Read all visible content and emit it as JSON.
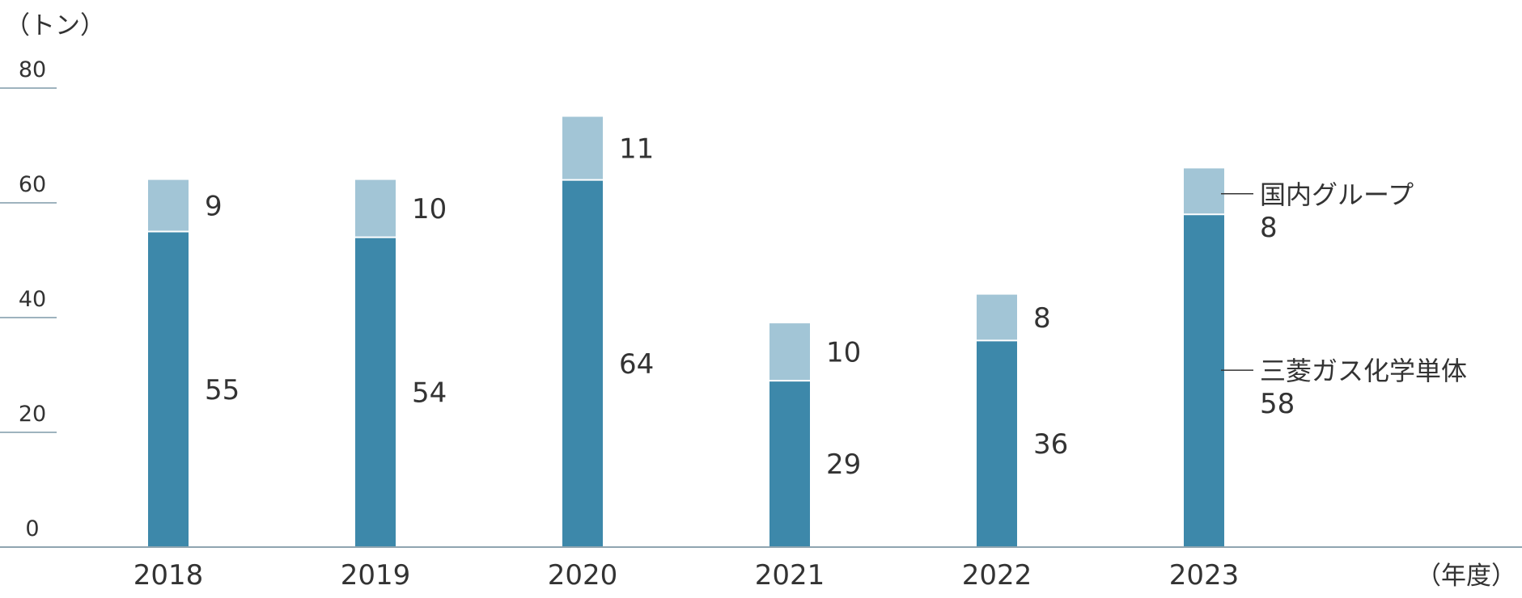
{
  "chart_data": {
    "type": "bar",
    "stacked": true,
    "y_unit": "（トン）",
    "x_unit": "（年度）",
    "categories": [
      "2018",
      "2019",
      "2020",
      "2021",
      "2022",
      "2023"
    ],
    "series": [
      {
        "name": "三菱ガス化学単体",
        "values": [
          55,
          54,
          64,
          29,
          36,
          58
        ],
        "value_labels": [
          "55",
          "54",
          "64",
          "29",
          "36",
          "58"
        ],
        "color": "#3d88aa"
      },
      {
        "name": "国内グループ",
        "values": [
          9,
          10,
          11,
          10,
          8,
          8
        ],
        "value_labels": [
          "9",
          "10",
          "11",
          "10",
          "8",
          "8"
        ],
        "color": "#a2c5d6"
      }
    ],
    "ylim": [
      0,
      80
    ],
    "yticks": [
      0,
      20,
      40,
      60,
      80
    ],
    "ytick_labels": [
      "0",
      "20",
      "40",
      "60",
      "80"
    ],
    "legend": "inline-right-of-last-bar",
    "grid": false,
    "colors": {
      "axis": "#8fa4b0",
      "tick": "#7f9aa8",
      "text": "#333333"
    }
  }
}
